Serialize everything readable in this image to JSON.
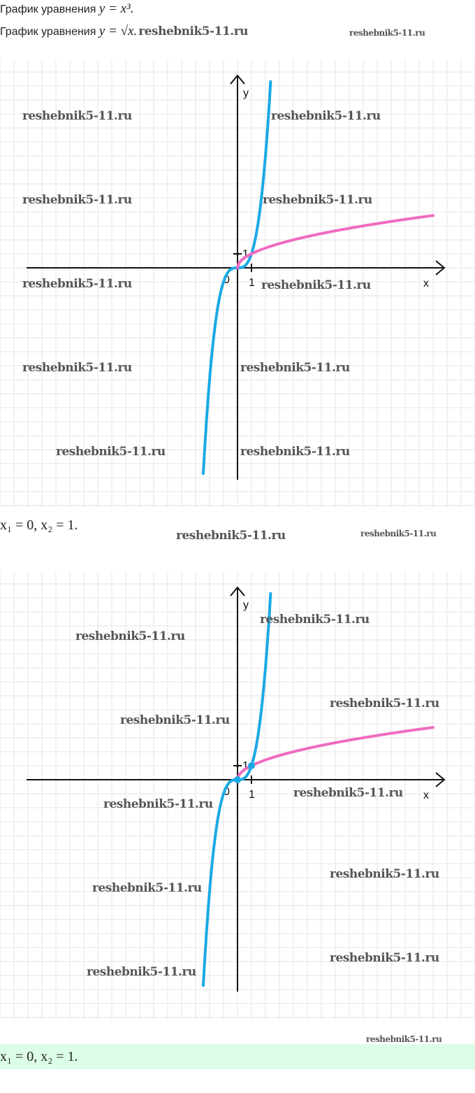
{
  "text": {
    "line1_prefix": "График уравнения",
    "line1_math": "y = x³.",
    "line2_prefix": "График уравнения",
    "line2_math": "y = √x.",
    "answer1": "x₁ = 0, x₂ = 1.",
    "answer2": "x₁ = 0, x₂ = 1."
  },
  "watermark": "reshebnik5-11.ru",
  "colors": {
    "cubic": "#1aa9e6",
    "sqrt": "#f06bc0",
    "grid": "#e4e4e4",
    "answer_bg": "#dcfde8"
  },
  "chart_data": [
    {
      "type": "line",
      "x_label": "x",
      "y_label": "y",
      "origin_label": "0",
      "x_tick_label": "1",
      "y_tick_label": "1",
      "grid": true,
      "series": [
        {
          "formula": "y = x^3",
          "x_range": [
            -2.45,
            2.37
          ],
          "color": "#1aa9e6"
        },
        {
          "formula": "y = sqrt(x)",
          "x_range": [
            0,
            14
          ],
          "color": "#f06bc0"
        }
      ]
    },
    {
      "type": "line",
      "x_label": "x",
      "y_label": "y",
      "origin_label": "0",
      "x_tick_label": "1",
      "y_tick_label": "1",
      "grid": true,
      "series": [
        {
          "formula": "y = x^3",
          "x_range": [
            -2.45,
            2.37
          ],
          "color": "#1aa9e6"
        },
        {
          "formula": "y = sqrt(x)",
          "x_range": [
            0,
            14
          ],
          "color": "#f06bc0"
        }
      ],
      "intersection_points": [
        [
          0,
          0
        ],
        [
          1,
          1
        ]
      ]
    }
  ]
}
